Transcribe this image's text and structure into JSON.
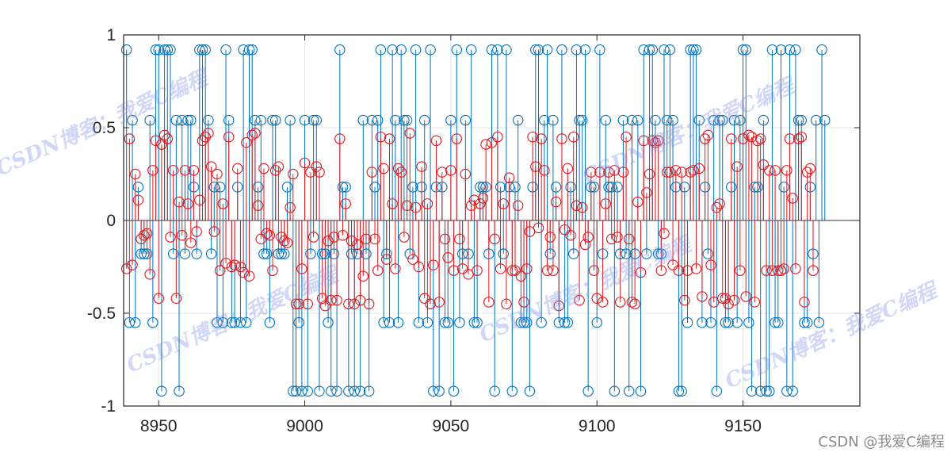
{
  "chart_data": {
    "type": "stem",
    "xlim": [
      8938,
      9190
    ],
    "ylim": [
      -1,
      1
    ],
    "x_ticks": [
      8950,
      9000,
      9050,
      9100,
      9150
    ],
    "y_ticks": [
      -1,
      -0.5,
      0,
      0.5,
      1
    ],
    "x_tick_labels": [
      "8950",
      "9000",
      "9050",
      "9100",
      "9150"
    ],
    "y_tick_labels": [
      "-1",
      "-0.5",
      "0",
      "0.5",
      "1"
    ],
    "grid": true,
    "x_start": 8939,
    "series": [
      {
        "name": "blue",
        "color": "#0072BD",
        "marker": "circle",
        "values": [
          0.92,
          -0.55,
          0.54,
          -0.55,
          0.18,
          -0.18,
          -0.18,
          -0.18,
          0.54,
          -0.55,
          0.92,
          0.92,
          -0.92,
          0.92,
          0.92,
          0.92,
          -0.18,
          0.54,
          -0.92,
          0.54,
          -0.18,
          0.54,
          0.54,
          0.18,
          -0.18,
          0.92,
          0.92,
          0.92,
          0.54,
          -0.18,
          0.18,
          -0.55,
          0.18,
          -0.55,
          0.92,
          0.54,
          -0.55,
          -0.55,
          0.18,
          -0.55,
          0.92,
          -0.55,
          0.92,
          0.92,
          0.54,
          0.18,
          0.54,
          -0.18,
          -0.18,
          -0.55,
          0.54,
          0.54,
          -0.18,
          -0.18,
          -0.18,
          0.18,
          0.54,
          -0.92,
          -0.92,
          -0.55,
          -0.92,
          0.54,
          -0.92,
          -0.18,
          0.54,
          0.54,
          -0.92,
          -0.18,
          -0.18,
          -0.55,
          -0.92,
          -0.18,
          -0.92,
          0.92,
          0.18,
          0.18,
          -0.92,
          -0.18,
          -0.92,
          -0.18,
          -0.92,
          0.54,
          -0.18,
          -0.92,
          0.54,
          0.18,
          0.54,
          0.92,
          -0.55,
          -0.18,
          -0.55,
          0.92,
          0.54,
          -0.55,
          0.92,
          0.54,
          0.54,
          -0.18,
          0.18,
          0.92,
          -0.55,
          0.18,
          0.54,
          -0.55,
          0.92,
          -0.92,
          0.18,
          -0.92,
          0.18,
          -0.55,
          -0.55,
          0.54,
          -0.92,
          0.92,
          -0.55,
          -0.18,
          0.54,
          -0.18,
          0.92,
          -0.55,
          -0.55,
          0.18,
          0.18,
          0.18,
          -0.18,
          0.92,
          -0.92,
          0.92,
          0.18,
          -0.18,
          0.92,
          0.18,
          -0.92,
          0.18,
          0.54,
          -0.55,
          -0.55,
          -0.55,
          -0.92,
          0.18,
          0.92,
          0.92,
          -0.55,
          0.54,
          0.92,
          -0.18,
          0.54,
          0.18,
          -0.55,
          0.92,
          -0.55,
          -0.55,
          0.18,
          -0.18,
          0.92,
          0.54,
          0.54,
          0.92,
          -0.92,
          0.18,
          0.18,
          -0.55,
          0.92,
          -0.18,
          0.54,
          0.18,
          0.18,
          -0.92,
          0.18,
          -0.18,
          0.54,
          -0.18,
          -0.92,
          0.54,
          -0.18,
          0.54,
          -0.92,
          0.92,
          -0.18,
          0.92,
          0.92,
          0.54,
          -0.18,
          -0.18,
          0.92,
          0.54,
          0.92,
          0.54,
          0.18,
          -0.92,
          -0.92,
          0.18,
          -0.55,
          0.92,
          0.92,
          0.92,
          0.54,
          -0.55,
          0.18,
          -0.18,
          -0.55,
          0.54,
          -0.92,
          0.54,
          0.54,
          -0.55,
          -0.55,
          0.18,
          0.54,
          -0.55,
          0.54,
          0.92,
          0.92,
          -0.55,
          -0.92,
          0.18,
          0.18,
          -0.92,
          0.54,
          -0.92,
          -0.92,
          0.92,
          -0.55,
          -0.55,
          0.92,
          0.18,
          -0.92,
          0.92,
          -0.92,
          0.92,
          0.54,
          0.54,
          -0.55,
          -0.55,
          0.18,
          -0.18,
          0.54,
          -0.55,
          0.92,
          0.54
        ]
      },
      {
        "name": "red",
        "color": "#E3161B",
        "marker": "circle",
        "values": [
          -0.26,
          0.44,
          -0.24,
          0.25,
          0.11,
          -0.1,
          -0.08,
          -0.07,
          -0.29,
          0.27,
          0.43,
          -0.42,
          0.41,
          0.46,
          0.44,
          -0.09,
          0.27,
          -0.42,
          0.1,
          -0.08,
          0.27,
          0.09,
          -0.12,
          0.27,
          -0.06,
          0.11,
          0.43,
          0.45,
          0.47,
          0.29,
          -0.06,
          0.25,
          -0.27,
          0.09,
          -0.23,
          0.45,
          -0.25,
          -0.24,
          0.28,
          -0.25,
          -0.28,
          0.42,
          -0.3,
          0.46,
          0.47,
          0.08,
          -0.1,
          0.28,
          -0.07,
          -0.08,
          -0.27,
          0.27,
          0.29,
          -0.09,
          -0.11,
          -0.12,
          0.07,
          0.25,
          -0.45,
          -0.45,
          -0.26,
          0.31,
          -0.45,
          0.26,
          -0.09,
          0.29,
          0.26,
          -0.42,
          -0.46,
          -0.11,
          -0.43,
          -0.09,
          -0.43,
          0.44,
          -0.08,
          0.09,
          -0.45,
          -0.11,
          -0.45,
          -0.13,
          -0.43,
          -0.3,
          -0.1,
          -0.45,
          0.26,
          -0.1,
          -0.27,
          0.45,
          0.28,
          -0.21,
          0.44,
          0.09,
          -0.26,
          0.28,
          0.26,
          -0.09,
          0.08,
          0.47,
          -0.21,
          0.07,
          -0.25,
          0.29,
          -0.42,
          0.09,
          -0.45,
          -0.24,
          0.43,
          -0.44,
          0.26,
          -0.1,
          -0.2,
          0.27,
          -0.27,
          0.44,
          -0.1,
          -0.26,
          0.25,
          -0.29,
          0.08,
          0.11,
          -0.27,
          0.09,
          0.12,
          0.41,
          -0.44,
          0.42,
          -0.1,
          0.45,
          -0.26,
          0.09,
          -0.45,
          0.23,
          -0.27,
          -0.27,
          0.08,
          -0.3,
          -0.44,
          -0.26,
          -0.06,
          0.45,
          0.29,
          -0.04,
          0.44,
          0.27,
          -0.27,
          -0.09,
          -0.27,
          0.1,
          -0.46,
          0.44,
          -0.05,
          0.28,
          -0.08,
          0.45,
          0.08,
          -0.43,
          0.07,
          -0.13,
          -0.09,
          0.26,
          -0.27,
          -0.42,
          0.26,
          -0.44,
          0.09,
          0.26,
          -0.1,
          0.27,
          -0.09,
          -0.44,
          0.26,
          0.45,
          -0.1,
          -0.44,
          -0.45,
          0.1,
          -0.28,
          0.43,
          0.15,
          0.25,
          0.43,
          0.42,
          0.43,
          -0.27,
          -0.07,
          0.26,
          0.26,
          -0.24,
          0.27,
          -0.27,
          0.26,
          -0.43,
          -0.27,
          0.26,
          0.27,
          -0.26,
          0.28,
          -0.41,
          0.44,
          0.46,
          -0.24,
          -0.44,
          0.07,
          0.09,
          -0.42,
          -0.42,
          -0.45,
          0.44,
          -0.43,
          0.29,
          -0.27,
          0.44,
          -0.41,
          0.46,
          0.45,
          -0.44,
          0.43,
          0.44,
          0.3,
          -0.27,
          0.27,
          -0.27,
          0.27,
          -0.27,
          -0.27,
          -0.26,
          0.27,
          0.44,
          0.12,
          -0.26,
          0.44,
          0.45,
          -0.44,
          0.26,
          0.28,
          -0.27
        ]
      }
    ]
  },
  "watermarks": [
    "CSDN博客：我爱C编程",
    "CSDN博客：我爱C编程",
    "CSDN博客：我爱C编程",
    "CSDN博客：我爱C编程"
  ],
  "footer_credit": "CSDN @我爱C编程"
}
